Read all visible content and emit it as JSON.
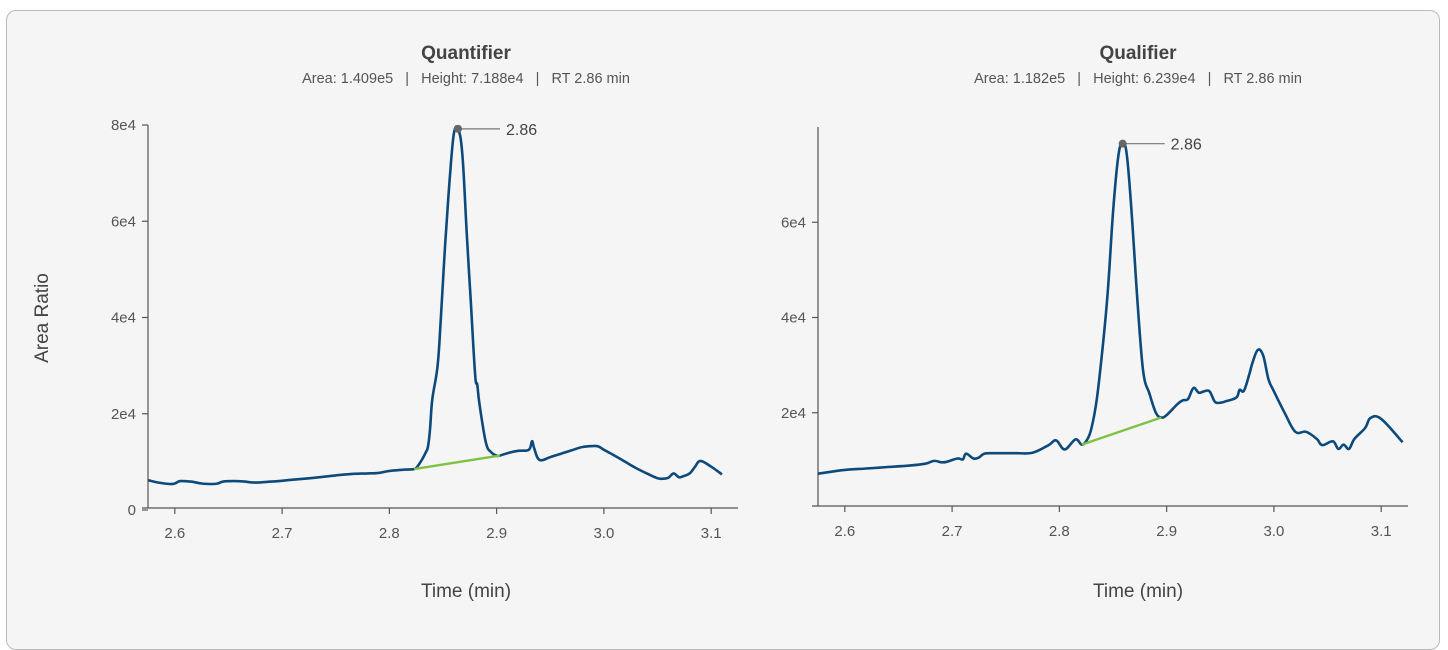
{
  "chart_data": [
    {
      "type": "line",
      "title": "Quantifier",
      "subtitle": "Area: 1.409e5   |   Height: 7.188e4   |   RT 2.86 min",
      "xlabel": "Time (min)",
      "ylabel": "Area Ratio",
      "xlim": [
        2.575,
        3.125
      ],
      "ylim": [
        0,
        80000
      ],
      "xticks": [
        2.6,
        2.7,
        2.8,
        2.9,
        3.0,
        3.1
      ],
      "xtick_labels": [
        "2.6",
        "2.7",
        "2.8",
        "2.9",
        "3.0",
        "3.1"
      ],
      "yticks": [
        0,
        20000,
        40000,
        60000,
        80000
      ],
      "ytick_labels": [
        "0",
        "2e4",
        "4e4",
        "6e4",
        "8e4"
      ],
      "grid": false,
      "line_color": "#0d4a7c",
      "baseline_color": "#7dc242",
      "peak_label": "2.86",
      "peak": {
        "x": 2.864,
        "y": 79200
      },
      "baseline": {
        "x": [
          2.823,
          2.903
        ],
        "y": [
          8500,
          11300
        ]
      },
      "x": [
        2.575,
        2.585,
        2.595,
        2.6,
        2.605,
        2.615,
        2.625,
        2.635,
        2.64,
        2.645,
        2.655,
        2.665,
        2.675,
        2.69,
        2.71,
        2.73,
        2.75,
        2.765,
        2.78,
        2.79,
        2.8,
        2.815,
        2.823,
        2.826,
        2.83,
        2.834,
        2.836,
        2.838,
        2.84,
        2.845,
        2.848,
        2.852,
        2.856,
        2.86,
        2.864,
        2.868,
        2.872,
        2.876,
        2.88,
        2.882,
        2.884,
        2.89,
        2.895,
        2.9,
        2.903,
        2.91,
        2.92,
        2.93,
        2.933,
        2.935,
        2.94,
        2.95,
        2.96,
        2.97,
        2.98,
        2.99,
        2.995,
        3.0,
        3.01,
        3.02,
        3.03,
        3.04,
        3.05,
        3.055,
        3.06,
        3.065,
        3.07,
        3.075,
        3.08,
        3.085,
        3.09,
        3.1,
        3.11
      ],
      "y": [
        6200,
        5700,
        5400,
        5500,
        6000,
        5900,
        5500,
        5400,
        5500,
        5900,
        6000,
        5900,
        5700,
        5900,
        6300,
        6700,
        7200,
        7500,
        7600,
        7700,
        8100,
        8400,
        8500,
        9000,
        10300,
        12000,
        13200,
        17000,
        23000,
        30000,
        40000,
        55000,
        68000,
        78000,
        79200,
        74000,
        58000,
        43000,
        28000,
        26000,
        22000,
        14000,
        12000,
        11300,
        11300,
        11800,
        12300,
        12500,
        14300,
        12800,
        10400,
        11000,
        11700,
        12400,
        13100,
        13300,
        13200,
        12500,
        11300,
        10000,
        8700,
        7600,
        6600,
        6500,
        6700,
        7600,
        6800,
        7100,
        7600,
        9000,
        10200,
        9000,
        7400
      ]
    },
    {
      "type": "line",
      "title": "Qualifier",
      "subtitle": "Area: 1.182e5   |   Height: 6.239e4   |   RT 2.86 min",
      "xlabel": "Time (min)",
      "ylabel": "",
      "xlim": [
        2.575,
        3.125
      ],
      "ylim": [
        0,
        80000
      ],
      "xticks": [
        2.6,
        2.7,
        2.8,
        2.9,
        3.0,
        3.1
      ],
      "xtick_labels": [
        "2.6",
        "2.7",
        "2.8",
        "2.9",
        "3.0",
        "3.1"
      ],
      "yticks": [
        20000,
        40000,
        60000
      ],
      "ytick_labels": [
        "2e4",
        "4e4",
        "6e4"
      ],
      "grid": false,
      "line_color": "#0d4a7c",
      "baseline_color": "#7dc242",
      "peak_label": "2.86",
      "peak": {
        "x": 2.859,
        "y": 76500
      },
      "baseline": {
        "x": [
          2.821,
          2.895
        ],
        "y": [
          13300,
          19000
        ]
      },
      "x": [
        2.575,
        2.59,
        2.6,
        2.62,
        2.64,
        2.66,
        2.675,
        2.683,
        2.69,
        2.695,
        2.705,
        2.71,
        2.713,
        2.72,
        2.725,
        2.73,
        2.74,
        2.76,
        2.775,
        2.79,
        2.797,
        2.805,
        2.815,
        2.821,
        2.826,
        2.83,
        2.835,
        2.84,
        2.845,
        2.85,
        2.855,
        2.859,
        2.863,
        2.868,
        2.872,
        2.878,
        2.884,
        2.89,
        2.895,
        2.9,
        2.91,
        2.915,
        2.92,
        2.925,
        2.93,
        2.935,
        2.94,
        2.945,
        2.95,
        2.955,
        2.965,
        2.968,
        2.972,
        2.977,
        2.98,
        2.985,
        2.99,
        2.995,
        3.0,
        3.01,
        3.02,
        3.03,
        3.04,
        3.045,
        3.055,
        3.06,
        3.065,
        3.07,
        3.075,
        3.085,
        3.09,
        3.1,
        3.12
      ],
      "y": [
        7200,
        7700,
        8000,
        8300,
        8600,
        8900,
        9300,
        9900,
        9600,
        9700,
        10400,
        10200,
        11400,
        10400,
        10600,
        11400,
        11500,
        11500,
        11600,
        13200,
        14200,
        12300,
        14400,
        13300,
        14400,
        16800,
        23000,
        33000,
        45000,
        62000,
        74000,
        76500,
        74000,
        60000,
        46000,
        29000,
        24000,
        20000,
        19000,
        19500,
        21800,
        22600,
        22900,
        25200,
        24200,
        24500,
        24500,
        22300,
        22100,
        22400,
        23200,
        24800,
        24600,
        28000,
        30500,
        33200,
        32000,
        27000,
        24500,
        20000,
        16000,
        16000,
        14500,
        13200,
        14000,
        12400,
        13300,
        12400,
        14500,
        16800,
        18900,
        18700,
        13800
      ]
    }
  ]
}
